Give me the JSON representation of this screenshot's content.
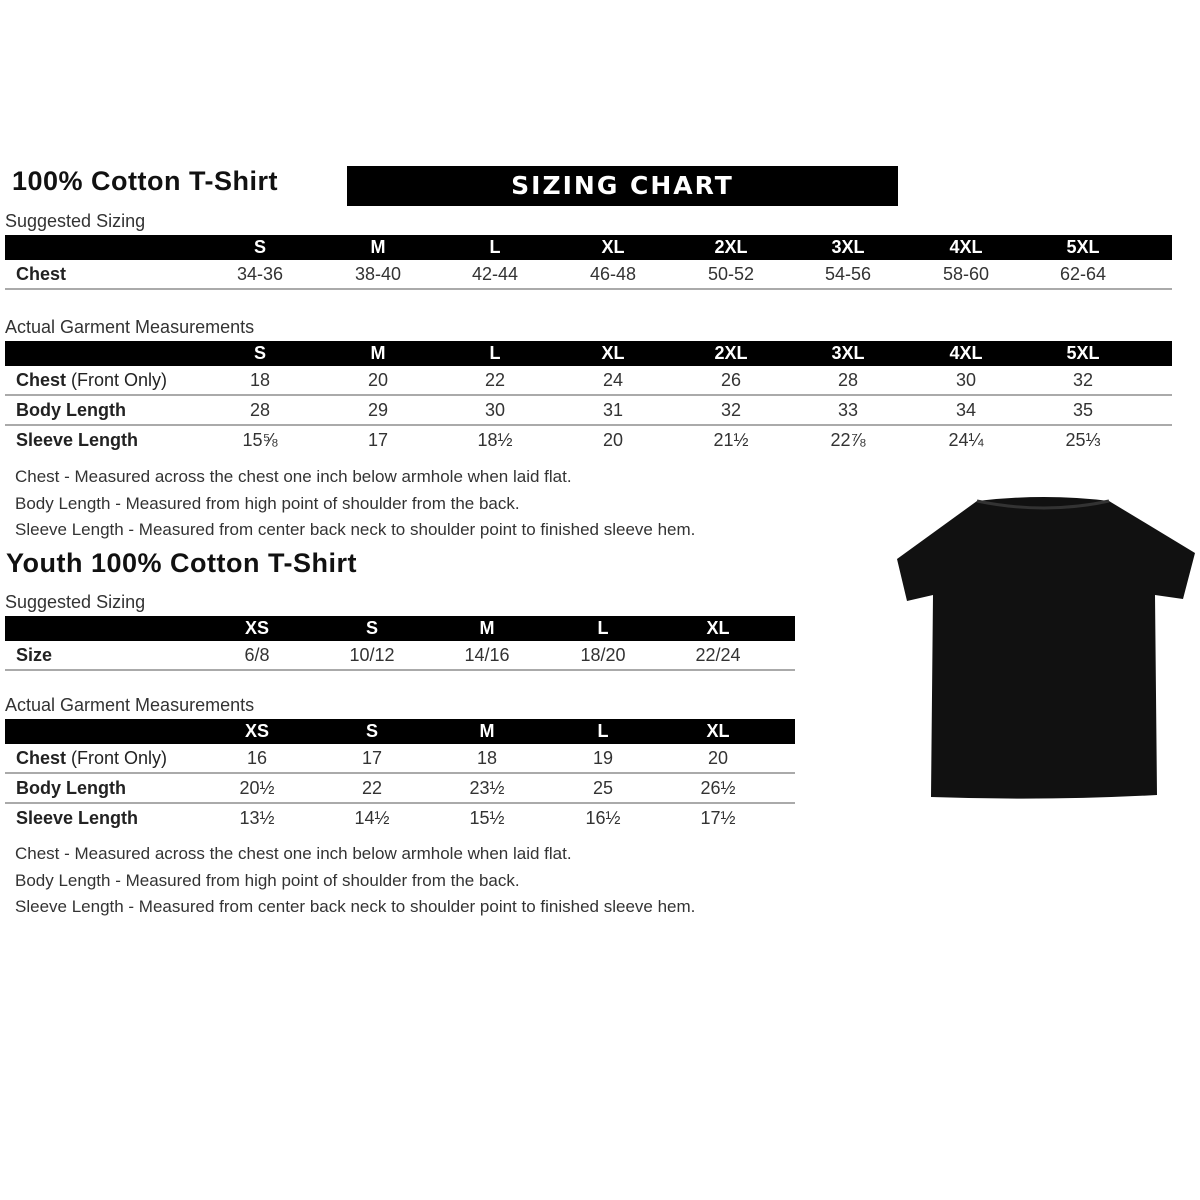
{
  "adult": {
    "title": "100% Cotton T-Shirt",
    "banner": "SIZING CHART",
    "suggested_label": "Suggested Sizing",
    "sizes": [
      "S",
      "M",
      "L",
      "XL",
      "2XL",
      "3XL",
      "4XL",
      "5XL"
    ],
    "suggested_rows": [
      {
        "label": "Chest",
        "values": [
          "34-36",
          "38-40",
          "42-44",
          "46-48",
          "50-52",
          "54-56",
          "58-60",
          "62-64"
        ]
      }
    ],
    "actual_label": "Actual Garment Measurements",
    "actual_rows": [
      {
        "label": "Chest",
        "label_note": "(Front Only)",
        "values": [
          "18",
          "20",
          "22",
          "24",
          "26",
          "28",
          "30",
          "32"
        ]
      },
      {
        "label": "Body Length",
        "values": [
          "28",
          "29",
          "30",
          "31",
          "32",
          "33",
          "34",
          "35"
        ]
      },
      {
        "label": "Sleeve Length",
        "values": [
          "15⅝",
          "17",
          "18½",
          "20",
          "21½",
          "22⅞",
          "24¼",
          "25⅓"
        ]
      }
    ],
    "notes": [
      "Chest - Measured across the chest one inch below armhole when laid flat.",
      "Body Length - Measured from high point of shoulder from the back.",
      "Sleeve Length - Measured from center back neck to shoulder point to finished sleeve hem."
    ]
  },
  "youth": {
    "title": "Youth 100% Cotton T-Shirt",
    "suggested_label": "Suggested Sizing",
    "sizes": [
      "XS",
      "S",
      "M",
      "L",
      "XL"
    ],
    "suggested_rows": [
      {
        "label": "Size",
        "values": [
          "6/8",
          "10/12",
          "14/16",
          "18/20",
          "22/24"
        ]
      }
    ],
    "actual_label": "Actual Garment Measurements",
    "actual_rows": [
      {
        "label": "Chest",
        "label_note": "(Front Only)",
        "values": [
          "16",
          "17",
          "18",
          "19",
          "20"
        ]
      },
      {
        "label": "Body Length",
        "values": [
          "20½",
          "22",
          "23½",
          "25",
          "26½"
        ]
      },
      {
        "label": "Sleeve Length",
        "values": [
          "13½",
          "14½",
          "15½",
          "16½",
          "17½"
        ]
      }
    ],
    "notes": [
      "Chest - Measured across the chest one inch below armhole when laid flat.",
      "Body Length - Measured from high point of shoulder from the back.",
      "Sleeve Length - Measured from center back neck to shoulder point to finished sleeve hem."
    ]
  },
  "shirt_color": "#111111"
}
